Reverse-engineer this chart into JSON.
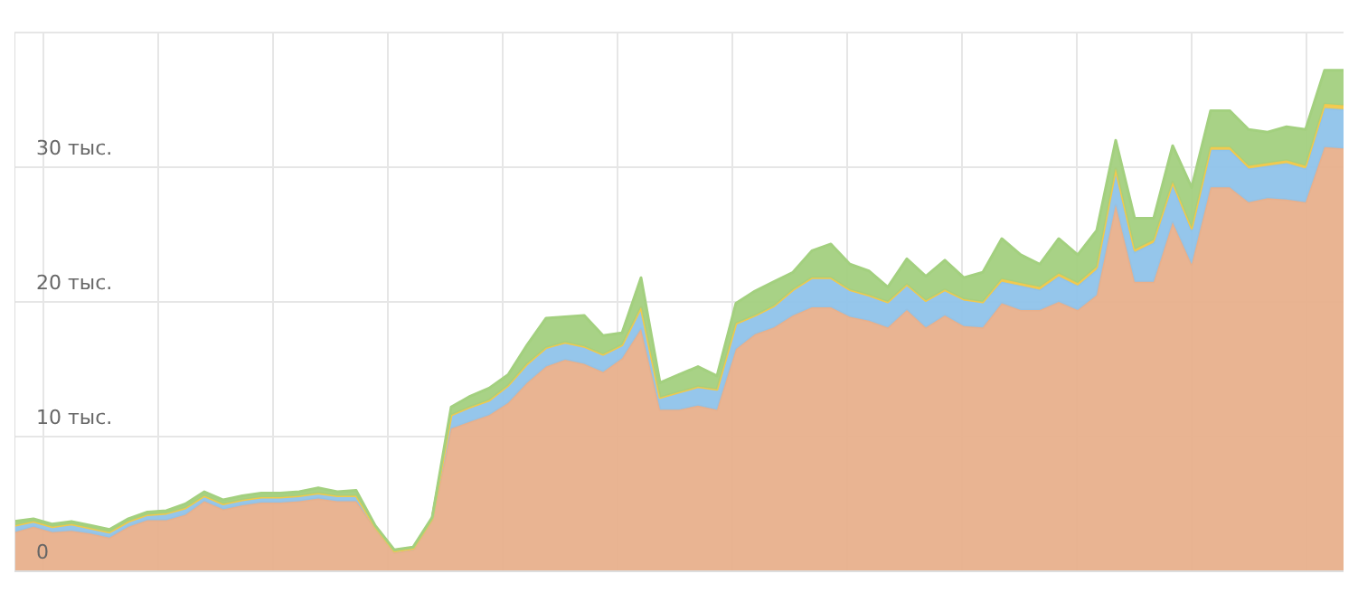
{
  "chart_data": {
    "type": "area",
    "stacked": true,
    "grid": true,
    "tick_labels": "y",
    "categories": [
      null,
      null,
      null,
      null,
      null,
      null,
      null,
      null,
      null,
      null,
      null,
      null,
      null,
      null,
      null,
      null,
      null,
      null,
      null,
      null,
      null,
      null,
      null,
      null,
      null,
      null,
      null,
      null,
      null,
      null,
      null,
      null,
      null,
      null,
      null,
      null,
      null,
      null,
      null,
      null,
      null,
      null,
      null,
      null,
      null,
      null,
      null,
      null,
      null,
      null,
      null,
      null,
      null,
      null,
      null,
      null,
      null,
      null,
      null,
      null,
      null,
      null,
      null,
      null,
      null,
      null,
      null,
      null,
      null,
      null,
      null
    ],
    "ylim": [
      0,
      40
    ],
    "yticks": [
      {
        "value": 0,
        "label": "0"
      },
      {
        "value": 10,
        "label": "10 тыс."
      },
      {
        "value": 20,
        "label": "20 тыс."
      },
      {
        "value": 30,
        "label": "30 тыс."
      }
    ],
    "series": [
      {
        "color": "#e8b08c",
        "values": [
          2.9,
          3.3,
          2.9,
          3.0,
          2.8,
          2.5,
          3.3,
          3.8,
          3.8,
          4.2,
          5.2,
          4.6,
          4.9,
          5.1,
          5.1,
          5.2,
          5.4,
          5.2,
          5.2,
          3.2,
          1.4,
          1.6,
          3.8,
          10.6,
          11.1,
          11.6,
          12.5,
          14.0,
          15.2,
          15.7,
          15.4,
          14.8,
          15.8,
          18.0,
          12.0,
          12.0,
          12.3,
          12.0,
          16.5,
          17.6,
          18.1,
          19.0,
          19.6,
          19.6,
          18.9,
          18.6,
          18.1,
          19.4,
          18.1,
          19.0,
          18.2,
          18.1,
          19.9,
          19.4,
          19.4,
          20.0,
          19.4,
          20.5,
          27.2,
          21.5,
          21.5,
          25.9,
          22.8,
          28.5,
          28.5,
          27.4,
          27.7,
          27.6,
          27.4,
          31.5,
          31.4
        ]
      },
      {
        "color": "#8fc3ea",
        "values": [
          0.5,
          0.4,
          0.4,
          0.5,
          0.4,
          0.4,
          0.4,
          0.4,
          0.5,
          0.5,
          0.4,
          0.4,
          0.4,
          0.4,
          0.4,
          0.4,
          0.4,
          0.4,
          0.4,
          0.1,
          0.1,
          0.1,
          0.1,
          1.0,
          1.1,
          1.1,
          1.3,
          1.4,
          1.4,
          1.3,
          1.3,
          1.3,
          1.0,
          1.6,
          0.9,
          1.3,
          1.4,
          1.5,
          1.9,
          1.4,
          1.6,
          1.9,
          2.2,
          2.2,
          2.0,
          1.9,
          1.9,
          1.9,
          2.0,
          1.9,
          2.0,
          1.9,
          1.6,
          1.8,
          1.5,
          1.9,
          1.8,
          1.9,
          2.5,
          2.2,
          2.9,
          2.8,
          2.5,
          2.8,
          2.8,
          2.5,
          2.4,
          2.7,
          2.5,
          2.9,
          2.9
        ]
      },
      {
        "color": "#f2c94c",
        "values": [
          0,
          0,
          0,
          0,
          0,
          0,
          0,
          0,
          0,
          0,
          0,
          0,
          0,
          0,
          0,
          0,
          0,
          0,
          0,
          0,
          0,
          0,
          0,
          0,
          0,
          0,
          0,
          0,
          0,
          0,
          0,
          0,
          0,
          0,
          0,
          0,
          0,
          0,
          0,
          0,
          0,
          0,
          0,
          0,
          0,
          0,
          0,
          0,
          0,
          0,
          0,
          0,
          0.2,
          0.2,
          0.2,
          0.2,
          0.2,
          0.2,
          0.2,
          0.2,
          0.2,
          0.2,
          0.2,
          0.2,
          0.2,
          0.2,
          0.2,
          0.2,
          0.2,
          0.3,
          0.3
        ]
      },
      {
        "color": "#a3d07f",
        "values": [
          0.3,
          0.2,
          0.2,
          0.2,
          0.2,
          0.2,
          0.2,
          0.2,
          0.2,
          0.3,
          0.3,
          0.3,
          0.3,
          0.3,
          0.3,
          0.3,
          0.4,
          0.3,
          0.4,
          0.1,
          0.1,
          0.1,
          0.1,
          0.6,
          0.8,
          0.9,
          0.8,
          1.4,
          2.2,
          1.9,
          2.3,
          1.4,
          0.9,
          2.2,
          1.1,
          1.3,
          1.5,
          1.0,
          1.5,
          1.8,
          1.8,
          1.3,
          2.0,
          2.5,
          1.9,
          1.8,
          1.1,
          1.9,
          1.8,
          2.2,
          1.6,
          2.2,
          3.0,
          2.1,
          1.7,
          2.6,
          2.1,
          2.7,
          2.1,
          2.3,
          1.6,
          2.7,
          3.0,
          2.7,
          2.7,
          2.7,
          2.3,
          2.5,
          2.7,
          2.5,
          2.6
        ]
      }
    ]
  }
}
